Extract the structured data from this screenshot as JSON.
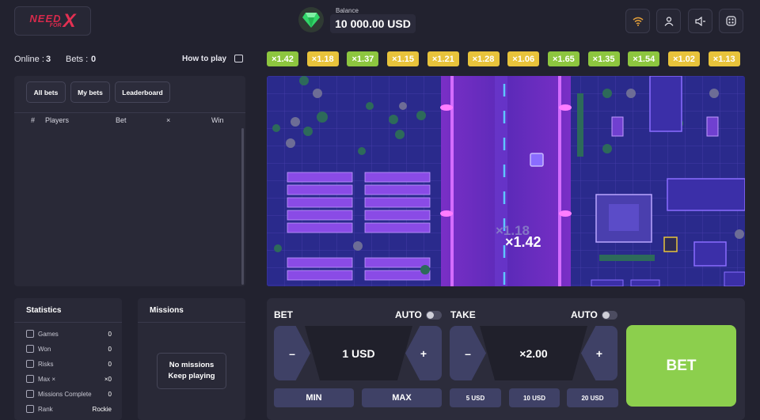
{
  "header": {
    "logo_text_top": "NEED",
    "logo_text_mid": "FOR",
    "logo_text_x": "X",
    "balance_label": "Balance",
    "balance_value": "10 000.00 USD"
  },
  "infobar": {
    "online_label": "Online :",
    "online_value": "3",
    "bets_label": "Bets :",
    "bets_value": "0",
    "how_to_play": "How to play"
  },
  "history": [
    {
      "value": "×1.42",
      "color": "#8dc63f"
    },
    {
      "value": "×1.18",
      "color": "#e8c33b"
    },
    {
      "value": "×1.37",
      "color": "#8dc63f"
    },
    {
      "value": "×1.15",
      "color": "#e8c33b"
    },
    {
      "value": "×1.21",
      "color": "#e8c33b"
    },
    {
      "value": "×1.28",
      "color": "#e8c33b"
    },
    {
      "value": "×1.06",
      "color": "#e8c33b"
    },
    {
      "value": "×1.65",
      "color": "#8dc63f"
    },
    {
      "value": "×1.35",
      "color": "#8dc63f"
    },
    {
      "value": "×1.54",
      "color": "#8dc63f"
    },
    {
      "value": "×1.02",
      "color": "#e8c33b"
    },
    {
      "value": "×1.13",
      "color": "#e8c33b"
    }
  ],
  "bets_panel": {
    "tabs": [
      "All bets",
      "My bets",
      "Leaderboard"
    ],
    "columns": [
      "#",
      "Players",
      "Bet",
      "×",
      "Win"
    ]
  },
  "game": {
    "prev_multiplier": "×1.18",
    "current_multiplier": "×1.42"
  },
  "statistics": {
    "title": "Statistics",
    "rows": [
      {
        "label": "Games",
        "value": "0",
        "icon": "gamepad-icon"
      },
      {
        "label": "Won",
        "value": "0",
        "icon": "trophy-icon"
      },
      {
        "label": "Risks",
        "value": "0",
        "icon": "risk-icon"
      },
      {
        "label": "Max ×",
        "value": "×0",
        "icon": "max-icon"
      },
      {
        "label": "Missions Complete",
        "value": "0",
        "icon": "check-icon"
      },
      {
        "label": "Rank",
        "value": "Rockie",
        "icon": "rank-icon"
      }
    ]
  },
  "missions": {
    "title": "Missions",
    "empty_line1": "No missions",
    "empty_line2": "Keep playing"
  },
  "control": {
    "bet_label": "BET",
    "auto_label": "AUTO",
    "take_label": "TAKE",
    "take_auto_label": "AUTO",
    "minus": "–",
    "plus": "+",
    "bet_value": "1 USD",
    "take_value": "×2.00",
    "min_label": "MIN",
    "max_label": "MAX",
    "quick_bets": [
      "5 USD",
      "10 USD",
      "20 USD"
    ],
    "bet_button": "BET",
    "bet_button_color": "#8ccf4d"
  }
}
